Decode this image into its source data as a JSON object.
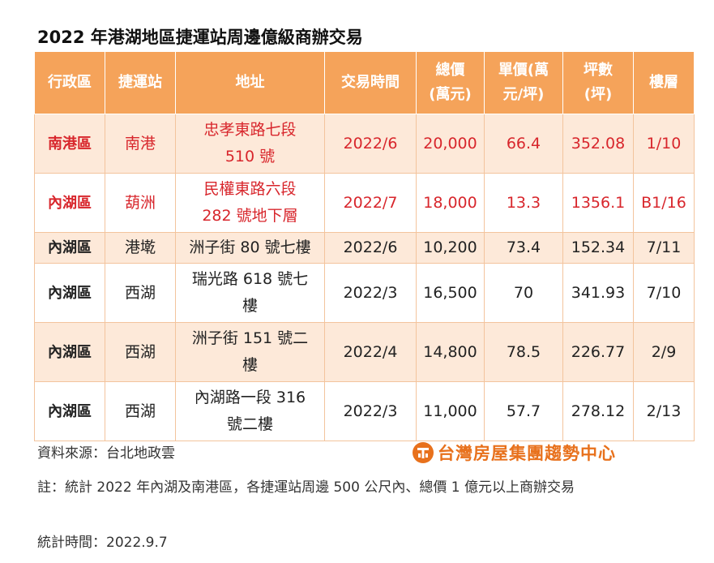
{
  "title": "2022 年港湖地區捷運站周邊億級商辦交易",
  "table": {
    "headers": [
      {
        "line1": "行政區",
        "line2": ""
      },
      {
        "line1": "捷運站",
        "line2": ""
      },
      {
        "line1": "地址",
        "line2": ""
      },
      {
        "line1": "交易時間",
        "line2": ""
      },
      {
        "line1": "總價",
        "line2": "(萬元)"
      },
      {
        "line1": "單價(萬",
        "line2": "元/坪)"
      },
      {
        "line1": "坪數",
        "line2": "(坪)"
      },
      {
        "line1": "樓層",
        "line2": ""
      }
    ],
    "rows": [
      {
        "district": "南港區",
        "station": "南港",
        "address_1": "忠孝東路七段",
        "address_2": "510 號",
        "date": "2022/6",
        "total": "20,000",
        "unit": "66.4",
        "area": "352.08",
        "floor": "1/10"
      },
      {
        "district": "內湖區",
        "station": "葫洲",
        "address_1": "民權東路六段",
        "address_2": "282 號地下層",
        "date": "2022/7",
        "total": "18,000",
        "unit": "13.3",
        "area": "1356.1",
        "floor": "B1/16"
      },
      {
        "district": "內湖區",
        "station": "港墘",
        "address_1": "洲子街 80 號七樓",
        "address_2": "",
        "date": "2022/6",
        "total": "10,200",
        "unit": "73.4",
        "area": "152.34",
        "floor": "7/11"
      },
      {
        "district": "內湖區",
        "station": "西湖",
        "address_1": "瑞光路 618 號七",
        "address_2": "樓",
        "date": "2022/3",
        "total": "16,500",
        "unit": "70",
        "area": "341.93",
        "floor": "7/10"
      },
      {
        "district": "內湖區",
        "station": "西湖",
        "address_1": "洲子街 151 號二",
        "address_2": "樓",
        "date": "2022/4",
        "total": "14,800",
        "unit": "78.5",
        "area": "226.77",
        "floor": "2/9"
      },
      {
        "district": "內湖區",
        "station": "西湖",
        "address_1": "內湖路一段 316",
        "address_2": "號二樓",
        "date": "2022/3",
        "total": "11,000",
        "unit": "57.7",
        "area": "278.12",
        "floor": "2/13"
      }
    ]
  },
  "source": "資料來源：台北地政雲",
  "brand": {
    "name": "台灣房屋集團趨勢中心",
    "icon": "taiwan-realty-logo-icon",
    "color": "#e8711c"
  },
  "note": "註：統計 2022 年內湖及南港區，各捷運站周邊 500 公尺內、總價 1 億元以上商辦交易",
  "stat_time": "統計時間：2022.9.7",
  "colors": {
    "header_bg": "#f5a35a",
    "shade_bg": "#fde9d9",
    "highlight_text": "#d8262c"
  }
}
